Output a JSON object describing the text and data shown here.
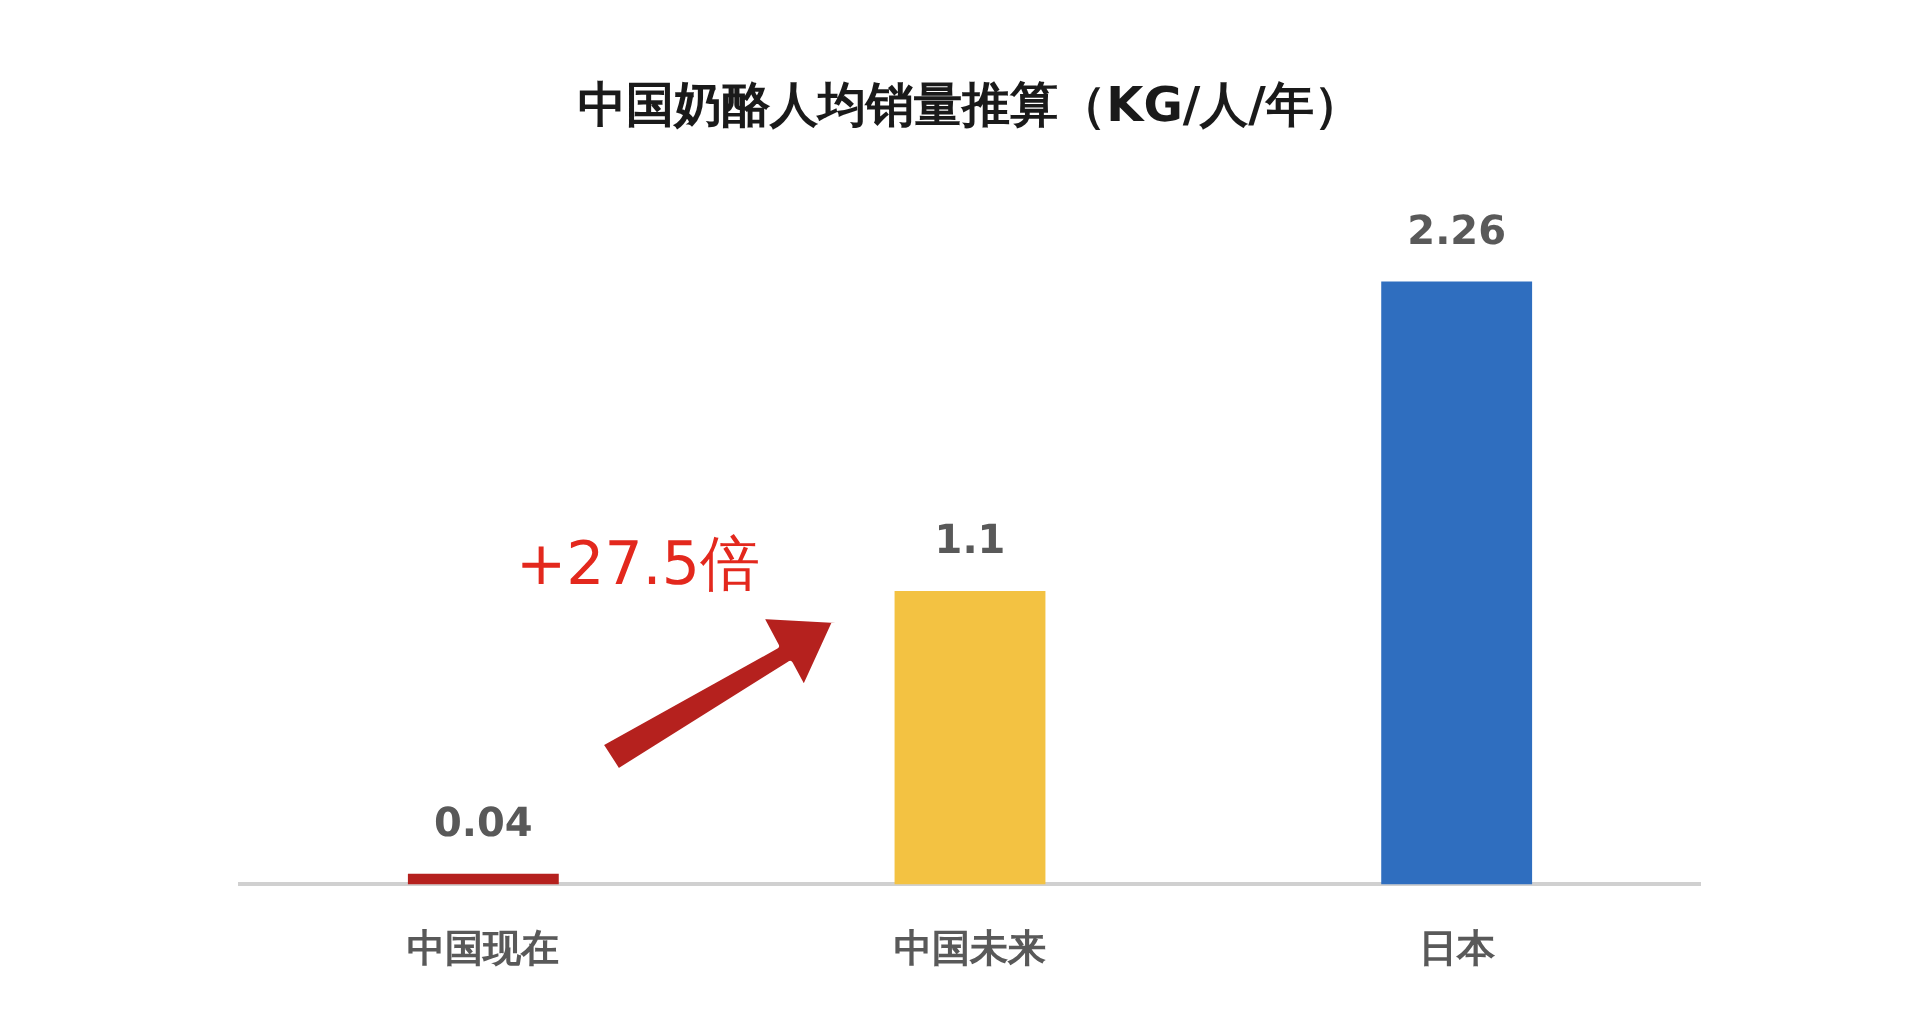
{
  "chart_data": {
    "type": "bar",
    "title": "中国奶酪人均销量推算（KG/人/年）",
    "categories": [
      "中国现在",
      "中国未来",
      "日本"
    ],
    "values": [
      0.04,
      1.1,
      2.26
    ],
    "colors": [
      "#b5211e",
      "#f3c242",
      "#2f6ebf"
    ],
    "data_labels": true,
    "annotations": [
      "+27.5倍"
    ]
  }
}
